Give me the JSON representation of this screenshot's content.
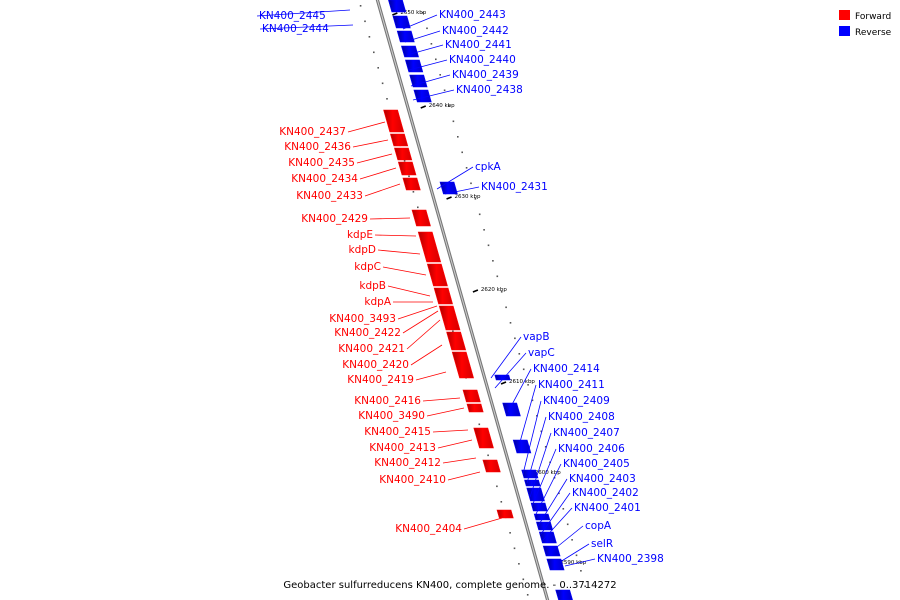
{
  "caption": "Geobacter sulfurreducens KN400, complete genome. - 0..3714272",
  "legend": [
    {
      "label": "Forward",
      "color": "#ff0000"
    },
    {
      "label": "Reverse",
      "color": "#0000ff"
    }
  ],
  "colors": {
    "forward": "#ff0000",
    "reverse": "#0000ff",
    "backbone": "#808080"
  },
  "ticks": [
    "2650 kbp",
    "2640 kbp",
    "2630 kbp",
    "2620 kbp",
    "2610 kbp",
    "2600 kbp",
    "2590 kbp"
  ],
  "reverse_genes": [
    "KN400_2445",
    "KN400_2444",
    "KN400_2443",
    "KN400_2442",
    "KN400_2441",
    "KN400_2440",
    "KN400_2439",
    "KN400_2438",
    "cpkA",
    "KN400_2431",
    "vapB",
    "vapC",
    "KN400_2414",
    "KN400_2411",
    "KN400_2409",
    "KN400_2408",
    "KN400_2407",
    "KN400_2406",
    "KN400_2405",
    "KN400_2403",
    "KN400_2402",
    "KN400_2401",
    "copA",
    "selR",
    "KN400_2398"
  ],
  "forward_genes": [
    "KN400_2437",
    "KN400_2436",
    "KN400_2435",
    "KN400_2434",
    "KN400_2433",
    "KN400_2429",
    "kdpE",
    "kdpD",
    "kdpC",
    "kdpB",
    "kdpA",
    "KN400_3493",
    "KN400_2422",
    "KN400_2421",
    "KN400_2420",
    "KN400_2419",
    "KN400_2416",
    "KN400_3490",
    "KN400_2415",
    "KN400_2413",
    "KN400_2412",
    "KN400_2410",
    "KN400_2404"
  ]
}
